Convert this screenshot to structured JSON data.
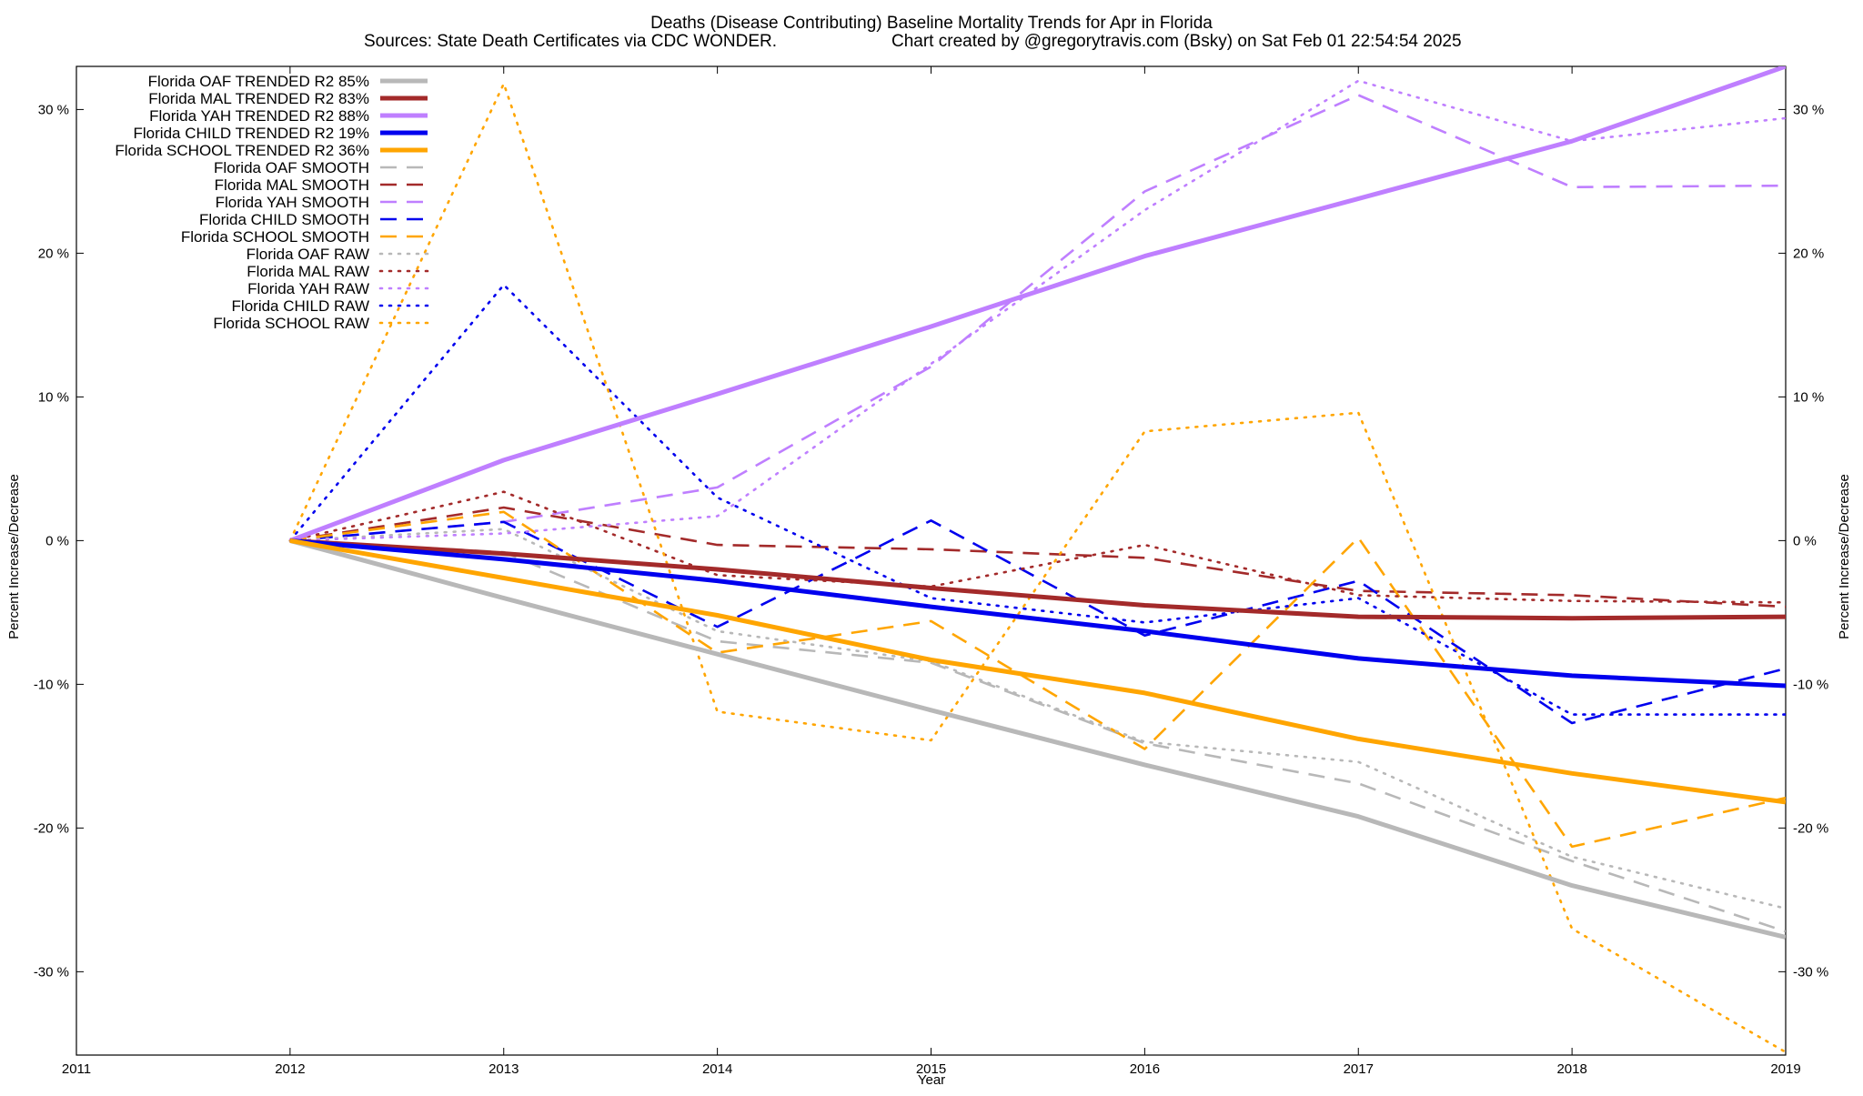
{
  "chart_data": {
    "type": "line",
    "title": "Deaths (Disease Contributing)  Baseline Mortality Trends for Apr in Florida",
    "subtitle_left": "Sources: State Death Certificates via CDC WONDER.",
    "subtitle_right": "Chart created by @gregorytravis.com (Bsky) on Sat Feb 01 22:54:54 2025",
    "xlabel": "Year",
    "ylabel_left": "Percent Increase/Decrease",
    "ylabel_right": "Percent Increase/Decrease",
    "xlim": [
      2011,
      2019
    ],
    "ylim": [
      -35.8,
      33
    ],
    "x_ticks": [
      "2011",
      "2012",
      "2013",
      "2014",
      "2015",
      "2016",
      "2017",
      "2018",
      "2019"
    ],
    "y_ticks": [
      {
        "value": 30,
        "label": "30 %"
      },
      {
        "value": 20,
        "label": "20 %"
      },
      {
        "value": 10,
        "label": "10 %"
      },
      {
        "value": 0,
        "label": "0 %"
      },
      {
        "value": -10,
        "label": "-10 %"
      },
      {
        "value": -20,
        "label": "-20 %"
      },
      {
        "value": -30,
        "label": "-30 %"
      }
    ],
    "grid": false,
    "legend_position": "top-left",
    "x": [
      2012,
      2013,
      2014,
      2015,
      2016,
      2017,
      2018,
      2019
    ],
    "series": [
      {
        "name": "Florida OAF TRENDED R2  85%",
        "color": "#b8b8b8",
        "style": "solid",
        "values": [
          0,
          -4.0,
          -7.9,
          -11.8,
          -15.6,
          -19.2,
          -24.0,
          -27.6
        ]
      },
      {
        "name": "Florida MAL TRENDED R2  83%",
        "color": "#a32a2a",
        "style": "solid",
        "values": [
          0,
          -0.9,
          -2.0,
          -3.3,
          -4.5,
          -5.3,
          -5.4,
          -5.3
        ]
      },
      {
        "name": "Florida YAH TRENDED R2  88%",
        "color": "#bf7fff",
        "style": "solid",
        "values": [
          0,
          5.6,
          10.2,
          14.9,
          19.8,
          23.8,
          27.8,
          33.0
        ]
      },
      {
        "name": "Florida CHILD TRENDED R2  19%",
        "color": "#0000ee",
        "style": "solid",
        "values": [
          0,
          -1.3,
          -2.8,
          -4.6,
          -6.3,
          -8.2,
          -9.4,
          -10.1
        ]
      },
      {
        "name": "Florida SCHOOL TRENDED R2  36%",
        "color": "#ffa500",
        "style": "solid",
        "values": [
          0,
          -2.6,
          -5.2,
          -8.3,
          -10.6,
          -13.8,
          -16.2,
          -18.2
        ]
      },
      {
        "name": "Florida OAF SMOOTH",
        "color": "#b8b8b8",
        "style": "dashed",
        "values": [
          0,
          -0.8,
          -7.0,
          -8.5,
          -14.1,
          -16.9,
          -22.3,
          -27.2
        ]
      },
      {
        "name": "Florida MAL SMOOTH",
        "color": "#a32a2a",
        "style": "dashed",
        "values": [
          0,
          2.3,
          -0.3,
          -0.6,
          -1.2,
          -3.5,
          -3.8,
          -4.6
        ]
      },
      {
        "name": "Florida YAH SMOOTH",
        "color": "#bf7fff",
        "style": "dashed",
        "values": [
          0,
          1.3,
          3.7,
          12.1,
          24.3,
          31.0,
          24.6,
          24.7
        ]
      },
      {
        "name": "Florida CHILD SMOOTH",
        "color": "#0000ee",
        "style": "dashed",
        "values": [
          0,
          1.3,
          -6.0,
          1.4,
          -6.6,
          -2.8,
          -12.7,
          -8.9
        ]
      },
      {
        "name": "Florida SCHOOL SMOOTH",
        "color": "#ffa500",
        "style": "dashed",
        "values": [
          0,
          2.0,
          -7.8,
          -5.6,
          -14.5,
          0.2,
          -21.3,
          -17.9
        ]
      },
      {
        "name": "Florida OAF RAW",
        "color": "#b8b8b8",
        "style": "dotted",
        "values": [
          0,
          0.8,
          -6.3,
          -8.4,
          -14.0,
          -15.4,
          -22.0,
          -25.6
        ]
      },
      {
        "name": "Florida MAL RAW",
        "color": "#a32a2a",
        "style": "dotted",
        "values": [
          0,
          3.4,
          -2.4,
          -3.2,
          -0.3,
          -3.8,
          -4.2,
          -4.3
        ]
      },
      {
        "name": "Florida YAH RAW",
        "color": "#bf7fff",
        "style": "dotted",
        "values": [
          0,
          0.5,
          1.7,
          12.3,
          23.0,
          32.0,
          27.8,
          29.4
        ]
      },
      {
        "name": "Florida CHILD RAW",
        "color": "#0000ee",
        "style": "dotted",
        "values": [
          0,
          17.8,
          3.0,
          -4.0,
          -5.7,
          -4.0,
          -12.1,
          -12.1
        ]
      },
      {
        "name": "Florida SCHOOL RAW",
        "color": "#ffa500",
        "style": "dotted",
        "values": [
          0,
          31.8,
          -11.9,
          -13.9,
          7.6,
          8.9,
          -27.0,
          -35.6
        ]
      }
    ]
  }
}
